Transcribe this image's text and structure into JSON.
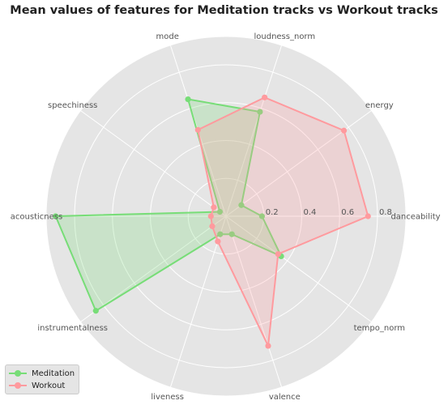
{
  "chart_data": {
    "type": "radar",
    "title": "Mean values of features for Meditation tracks vs Workout tracks",
    "axes": [
      "danceability",
      "energy",
      "loudness_norm",
      "mode",
      "speechiness",
      "acousticness",
      "instrumentalness",
      "liveness",
      "valence",
      "tempo_norm"
    ],
    "radial_ticks": [
      "0.2",
      "0.4",
      "0.6",
      "0.8"
    ],
    "rlim": [
      0,
      0.95
    ],
    "grid": true,
    "legend_position": "lower-left",
    "series": [
      {
        "name": "Meditation",
        "color": "#77dd77",
        "values": [
          0.19,
          0.1,
          0.58,
          0.65,
          0.04,
          0.9,
          0.85,
          0.1,
          0.1,
          0.36
        ]
      },
      {
        "name": "Workout",
        "color": "#ff9a9e",
        "values": [
          0.75,
          0.77,
          0.66,
          0.48,
          0.08,
          0.08,
          0.09,
          0.14,
          0.72,
          0.34
        ]
      }
    ]
  }
}
